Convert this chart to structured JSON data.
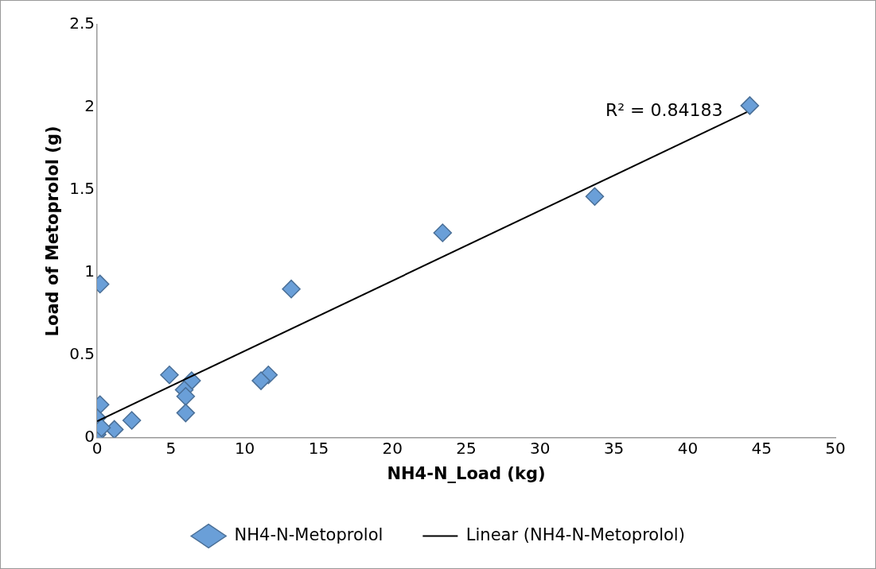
{
  "chart_data": {
    "type": "scatter",
    "xlabel": "NH4-N_Load (kg)",
    "ylabel": "Load of Metoprolol (g)",
    "xlim": [
      0,
      50
    ],
    "xticks": [
      0,
      5,
      10,
      15,
      20,
      25,
      30,
      35,
      40,
      45,
      50
    ],
    "ylim": [
      0,
      2.5
    ],
    "yticks": [
      0,
      0.5,
      1,
      1.5,
      2,
      2.5
    ],
    "grid": false,
    "legend": "bottom",
    "marker": "diamond",
    "series": [
      {
        "name": "NH4-N-Metoprolol",
        "color": "#6a9fd8",
        "x": [
          44.2,
          33.7,
          23.4,
          13.15,
          0.2,
          4.9,
          11.6,
          11.1,
          6.4,
          5.9,
          6.0,
          6.0,
          0.2,
          2.35,
          1.17,
          0,
          0,
          0.3
        ],
        "values": [
          2.01,
          1.46,
          1.24,
          0.9,
          0.93,
          0.38,
          0.38,
          0.345,
          0.345,
          0.29,
          0.25,
          0.15,
          0.2,
          0.105,
          0.05,
          0.12,
          0.02,
          0.06
        ]
      },
      {
        "name": "Linear (NH4-N-Metoprolol)",
        "type": "line",
        "color": "#000000",
        "x": [
          0,
          44
        ],
        "values": [
          0.1,
          1.97
        ],
        "marker": "none"
      }
    ],
    "annotations": [
      "R² = 0.84183"
    ]
  }
}
